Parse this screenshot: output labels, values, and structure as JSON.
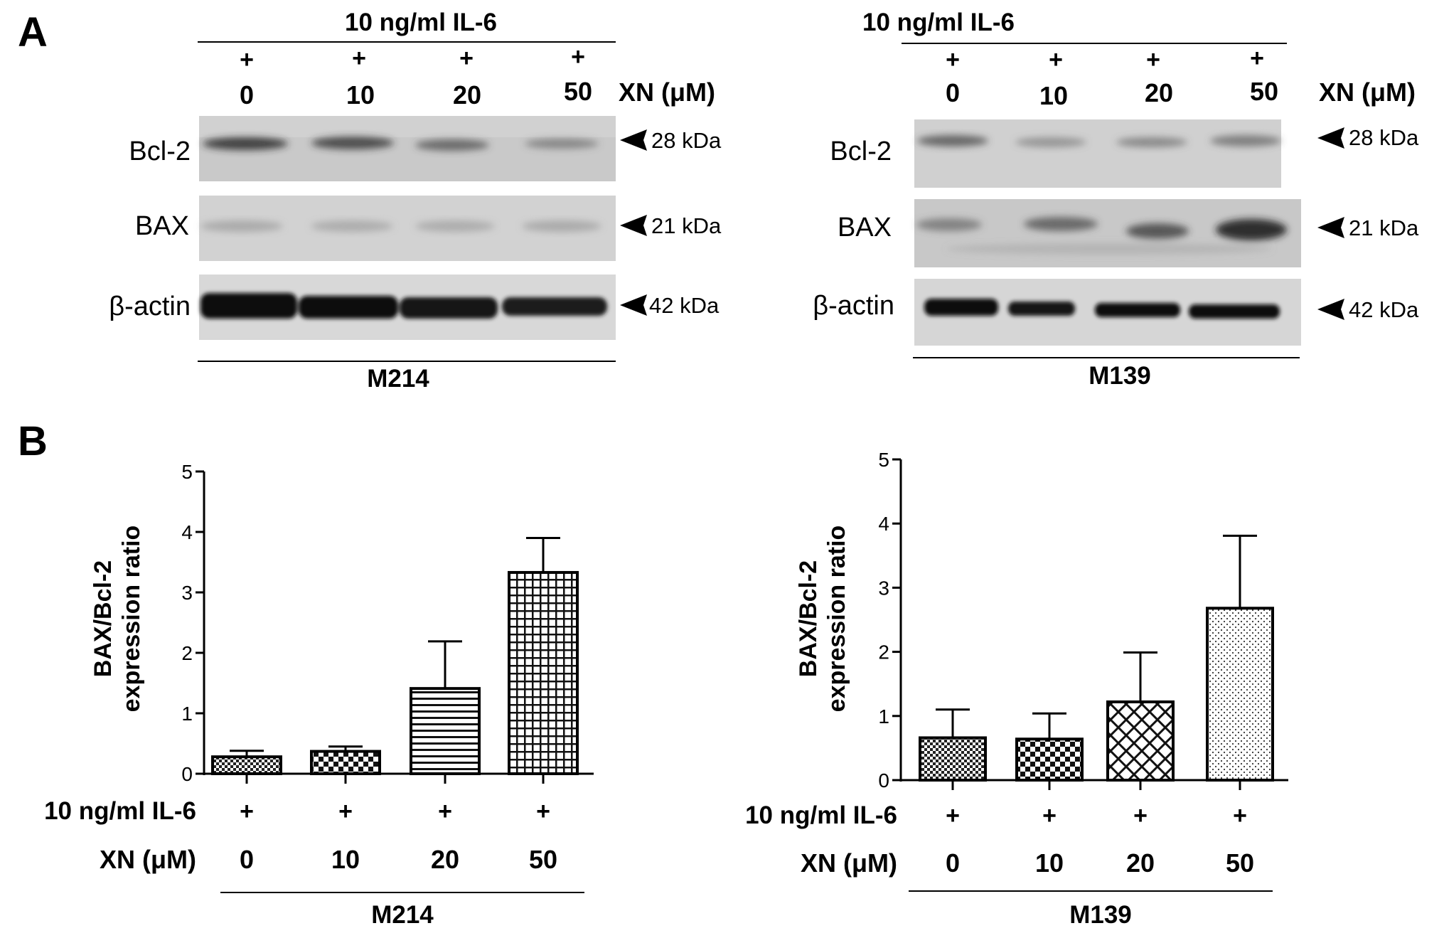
{
  "panel_labels": {
    "a": "A",
    "b": "B"
  },
  "blots": [
    {
      "id": "m214",
      "treatment": "10 ng/ml IL-6",
      "plus_marks": [
        "+",
        "+",
        "+",
        "+"
      ],
      "doses": [
        "0",
        "10",
        "20",
        "50"
      ],
      "dose_label": "XN (μM)",
      "rows": [
        {
          "label": "Bcl-2",
          "marker": "28 kDa"
        },
        {
          "label": "BAX",
          "marker": "21 kDa"
        },
        {
          "label": "β-actin",
          "marker": "42 kDa"
        }
      ],
      "cell_line": "M214"
    },
    {
      "id": "m139",
      "treatment": "10 ng/ml IL-6",
      "plus_marks": [
        "+",
        "+",
        "+",
        "+"
      ],
      "doses": [
        "0",
        "10",
        "20",
        "50"
      ],
      "dose_label": "XN (μM)",
      "rows": [
        {
          "label": "Bcl-2",
          "marker": "28 kDa"
        },
        {
          "label": "BAX",
          "marker": "21 kDa"
        },
        {
          "label": "β-actin",
          "marker": "42 kDa"
        }
      ],
      "cell_line": "M139"
    }
  ],
  "chart_data": [
    {
      "type": "bar",
      "ylabel_lines": [
        "BAX/Bcl-2",
        "expression ratio"
      ],
      "ylim": [
        0,
        5
      ],
      "yticks": [
        "0",
        "1",
        "2",
        "3",
        "4",
        "5"
      ],
      "row_label_treatment": "10 ng/ml IL-6",
      "row_label_dose": "XN (μM)",
      "treatment_marks": [
        "+",
        "+",
        "+",
        "+"
      ],
      "categories": [
        "0",
        "10",
        "20",
        "50"
      ],
      "series": [
        {
          "values": [
            0.28,
            0.37,
            1.41,
            3.33
          ],
          "errors": [
            0.1,
            0.08,
            0.78,
            0.57
          ]
        }
      ],
      "patterns": [
        "fine-check",
        "check",
        "horizontal-lines",
        "grid"
      ],
      "cell_line": "M214"
    },
    {
      "type": "bar",
      "ylabel_lines": [
        "BAX/Bcl-2",
        "expression ratio"
      ],
      "ylim": [
        0,
        5
      ],
      "yticks": [
        "0",
        "1",
        "2",
        "3",
        "4",
        "5"
      ],
      "row_label_treatment": "10 ng/ml IL-6",
      "row_label_dose": "XN (μM)",
      "treatment_marks": [
        "+",
        "+",
        "+",
        "+"
      ],
      "categories": [
        "0",
        "10",
        "20",
        "50"
      ],
      "series": [
        {
          "values": [
            0.66,
            0.64,
            1.22,
            2.68
          ],
          "errors": [
            0.44,
            0.4,
            0.77,
            1.13
          ]
        }
      ],
      "patterns": [
        "fine-check",
        "check",
        "crosshatch",
        "dots"
      ],
      "cell_line": "M139"
    }
  ]
}
